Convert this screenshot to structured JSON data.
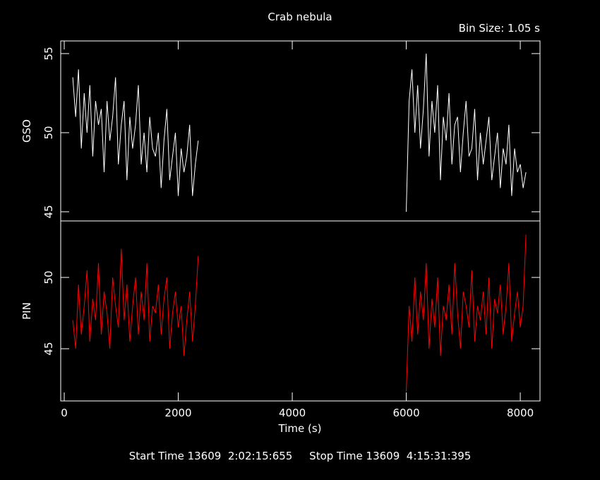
{
  "chart_data": [
    {
      "type": "line",
      "title": "Crab nebula",
      "annotation": "Bin Size: 1.05 s",
      "ylabel": "GSO",
      "xlim": [
        -62,
        8346
      ],
      "ylim": [
        44.42,
        55.8
      ],
      "yticks": [
        45,
        50,
        55
      ],
      "x": [
        150,
        200,
        250,
        300,
        350,
        400,
        450,
        500,
        550,
        600,
        650,
        700,
        750,
        800,
        850,
        900,
        950,
        1000,
        1050,
        1100,
        1150,
        1200,
        1250,
        1300,
        1350,
        1400,
        1450,
        1500,
        1550,
        1600,
        1650,
        1700,
        1750,
        1800,
        1850,
        1900,
        1950,
        2000,
        2050,
        2100,
        2150,
        2200,
        2250,
        2300,
        2350,
        4000,
        6000,
        6050,
        6100,
        6150,
        6200,
        6250,
        6300,
        6350,
        6400,
        6450,
        6500,
        6550,
        6600,
        6650,
        6700,
        6750,
        6800,
        6850,
        6900,
        6950,
        7000,
        7050,
        7100,
        7150,
        7200,
        7250,
        7300,
        7350,
        7400,
        7450,
        7500,
        7550,
        7600,
        7650,
        7700,
        7750,
        7800,
        7850,
        7900,
        7950,
        8000,
        8050,
        8100
      ],
      "series": [
        {
          "name": "GSO",
          "color": "#ffffff",
          "values": [
            53.5,
            51,
            54,
            49,
            52.5,
            50,
            53,
            48.5,
            52,
            50.5,
            51.5,
            47.5,
            52,
            49.5,
            51,
            53.5,
            48,
            50.5,
            52,
            47,
            51,
            49,
            50.5,
            53,
            48,
            50,
            47.5,
            51,
            49,
            48.5,
            50,
            46.5,
            49.5,
            51.5,
            47,
            48.5,
            50,
            46,
            49,
            47.5,
            48.5,
            50.5,
            46,
            48,
            49.5,
            null,
            45,
            52,
            54,
            50,
            53,
            49,
            51.5,
            55,
            48.5,
            52,
            50,
            53,
            47,
            51,
            49.5,
            52.5,
            48,
            50.5,
            51,
            47.5,
            50,
            52,
            48.5,
            49,
            51.5,
            47,
            50,
            48,
            49.5,
            51,
            47,
            48.5,
            50,
            46.5,
            49,
            48,
            50.5,
            46,
            49,
            47.5,
            48,
            46.5,
            47.5
          ]
        }
      ]
    },
    {
      "type": "line",
      "ylabel": "PIN",
      "xlabel": "Time (s)",
      "footer": "Start Time 13609  2:02:15:655     Stop Time 13609  4:15:31:395",
      "xlim": [
        -62,
        8346
      ],
      "xticks": [
        0,
        2000,
        4000,
        6000,
        8000
      ],
      "ylim": [
        41.34,
        53.96
      ],
      "yticks": [
        45,
        50
      ],
      "x": [
        150,
        200,
        250,
        300,
        350,
        400,
        450,
        500,
        550,
        600,
        650,
        700,
        750,
        800,
        850,
        900,
        950,
        1000,
        1050,
        1100,
        1150,
        1200,
        1250,
        1300,
        1350,
        1400,
        1450,
        1500,
        1550,
        1600,
        1650,
        1700,
        1750,
        1800,
        1850,
        1900,
        1950,
        2000,
        2050,
        2100,
        2150,
        2200,
        2250,
        2300,
        2350,
        4000,
        6000,
        6050,
        6100,
        6150,
        6200,
        6250,
        6300,
        6350,
        6400,
        6450,
        6500,
        6550,
        6600,
        6650,
        6700,
        6750,
        6800,
        6850,
        6900,
        6950,
        7000,
        7050,
        7100,
        7150,
        7200,
        7250,
        7300,
        7350,
        7400,
        7450,
        7500,
        7550,
        7600,
        7650,
        7700,
        7750,
        7800,
        7850,
        7900,
        7950,
        8000,
        8050,
        8100
      ],
      "series": [
        {
          "name": "PIN",
          "color": "#ff0000",
          "values": [
            47,
            45,
            49.5,
            46,
            48,
            50.5,
            45.5,
            48.5,
            47,
            51,
            46,
            49,
            47.5,
            45,
            50,
            48,
            46.5,
            52,
            47,
            49.5,
            45.5,
            48,
            50,
            46,
            49,
            47,
            51,
            45.5,
            48,
            47.5,
            49.5,
            46,
            48.5,
            50,
            45,
            47.5,
            49,
            46.5,
            48,
            44.5,
            47,
            49,
            45.5,
            48,
            51.5,
            null,
            42,
            48,
            45.5,
            50,
            46,
            49,
            47,
            51,
            45,
            48.5,
            46.5,
            50,
            44.5,
            48,
            47,
            49.5,
            46,
            51,
            47.5,
            45,
            49,
            48,
            46.5,
            50.5,
            45.5,
            48,
            47,
            49,
            46,
            50,
            45,
            48.5,
            47.5,
            49.5,
            46,
            48,
            51,
            45.5,
            47.5,
            49,
            46.5,
            48,
            53
          ]
        }
      ]
    }
  ]
}
